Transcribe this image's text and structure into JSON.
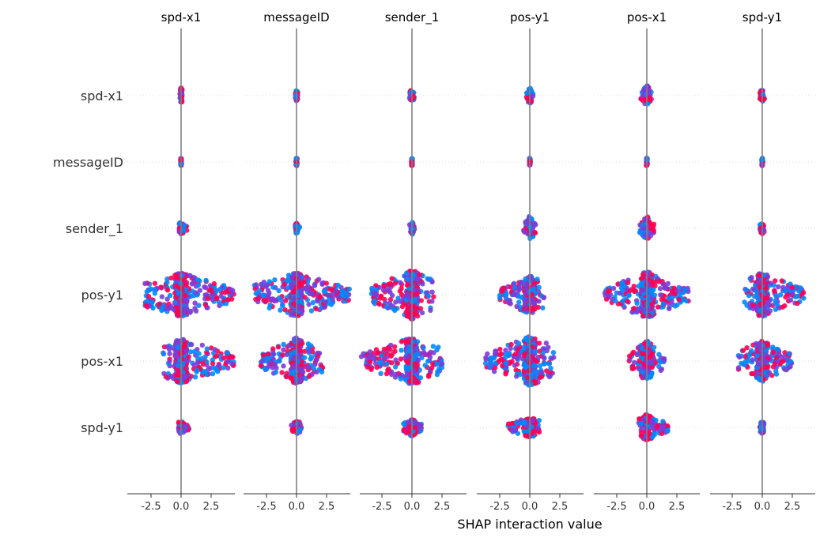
{
  "chart_data": {
    "type": "scatter",
    "features": [
      "spd-x1",
      "messageID",
      "sender_1",
      "pos-y1",
      "pos-x1",
      "spd-y1"
    ],
    "columns": [
      "spd-x1",
      "messageID",
      "sender_1",
      "pos-y1",
      "pos-x1",
      "spd-y1"
    ],
    "xlabel": "SHAP interaction value",
    "xticks": [
      "-2.5",
      "0.0",
      "2.5"
    ],
    "xlim": [
      -4.5,
      4.5
    ],
    "colors": {
      "low": "#008afb",
      "mid": "#7c3cd6",
      "high": "#ff0052",
      "axis": "#999999",
      "zero_line": "#808080"
    },
    "cells": [
      [
        {
          "min": -0.1,
          "max": 0.1,
          "width": 0.25
        },
        {
          "min": -0.1,
          "max": 0.1,
          "width": 0.15
        },
        {
          "min": -0.2,
          "max": 0.2,
          "width": 0.2
        },
        {
          "min": -0.3,
          "max": 0.3,
          "width": 0.3
        },
        {
          "min": -0.5,
          "max": 0.5,
          "width": 0.35
        },
        {
          "min": -0.2,
          "max": 0.2,
          "width": 0.2
        }
      ],
      [
        {
          "min": -0.05,
          "max": 0.05,
          "width": 0.1
        },
        {
          "min": -0.05,
          "max": 0.05,
          "width": 0.1
        },
        {
          "min": -0.05,
          "max": 0.05,
          "width": 0.1
        },
        {
          "min": -0.05,
          "max": 0.05,
          "width": 0.1
        },
        {
          "min": -0.05,
          "max": 0.05,
          "width": 0.1
        },
        {
          "min": -0.05,
          "max": 0.05,
          "width": 0.1
        }
      ],
      [
        {
          "min": -0.15,
          "max": 0.5,
          "width": 0.2
        },
        {
          "min": -0.1,
          "max": 0.3,
          "width": 0.15
        },
        {
          "min": -0.2,
          "max": 0.2,
          "width": 0.2
        },
        {
          "min": -0.5,
          "max": 0.5,
          "width": 0.45
        },
        {
          "min": -0.6,
          "max": 0.6,
          "width": 0.45
        },
        {
          "min": -0.2,
          "max": 0.2,
          "width": 0.2
        }
      ],
      [
        {
          "min": -3.0,
          "max": 4.5,
          "width": 0.8
        },
        {
          "min": -3.5,
          "max": 4.5,
          "width": 0.8
        },
        {
          "min": -3.5,
          "max": 1.8,
          "width": 0.9
        },
        {
          "min": -2.5,
          "max": 1.2,
          "width": 0.7
        },
        {
          "min": -3.5,
          "max": 3.5,
          "width": 0.85
        },
        {
          "min": -1.5,
          "max": 3.5,
          "width": 0.8
        }
      ],
      [
        {
          "min": -1.5,
          "max": 4.5,
          "width": 0.8
        },
        {
          "min": -3.0,
          "max": 2.2,
          "width": 0.85
        },
        {
          "min": -4.3,
          "max": 2.5,
          "width": 0.85
        },
        {
          "min": -3.7,
          "max": 2.0,
          "width": 0.9
        },
        {
          "min": -1.5,
          "max": 1.5,
          "width": 0.75
        },
        {
          "min": -2.2,
          "max": 2.5,
          "width": 0.75
        }
      ],
      [
        {
          "min": -0.2,
          "max": 0.7,
          "width": 0.2
        },
        {
          "min": -0.5,
          "max": 0.5,
          "width": 0.25
        },
        {
          "min": -0.8,
          "max": 0.8,
          "width": 0.3
        },
        {
          "min": -1.8,
          "max": 0.8,
          "width": 0.35
        },
        {
          "min": -0.7,
          "max": 1.8,
          "width": 0.45
        },
        {
          "min": -0.2,
          "max": 0.2,
          "width": 0.2
        }
      ]
    ]
  }
}
